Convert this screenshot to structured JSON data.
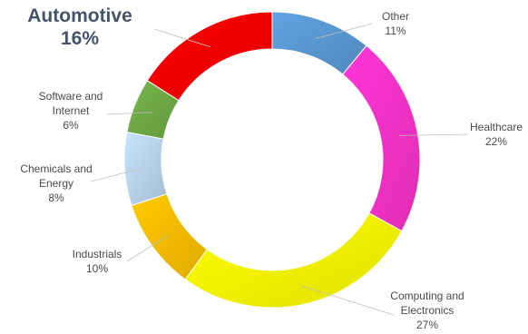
{
  "chart_data": {
    "type": "pie",
    "variant": "donut",
    "title": "",
    "start_angle_deg": 0,
    "direction": "clockwise",
    "slices": [
      {
        "label": "Other",
        "value": 11,
        "value_label": "11%",
        "color": "#5b9bd5"
      },
      {
        "label": "Healthcare",
        "value": 22,
        "value_label": "22%",
        "color": "#ff33cc"
      },
      {
        "label": "Computing and Electronics",
        "value": 27,
        "value_label": "27%",
        "color": "#ffff00"
      },
      {
        "label": "Industrials",
        "value": 10,
        "value_label": "10%",
        "color": "#ffc000"
      },
      {
        "label": "Chemicals and Energy",
        "value": 8,
        "value_label": "8%",
        "color": "#bdd7ee"
      },
      {
        "label": "Software and Internet",
        "value": 6,
        "value_label": "6%",
        "color": "#70ad47"
      },
      {
        "label": "Automotive",
        "value": 16,
        "value_label": "16%",
        "color": "#ff0000",
        "emphasized": true
      }
    ],
    "legend": "none"
  }
}
